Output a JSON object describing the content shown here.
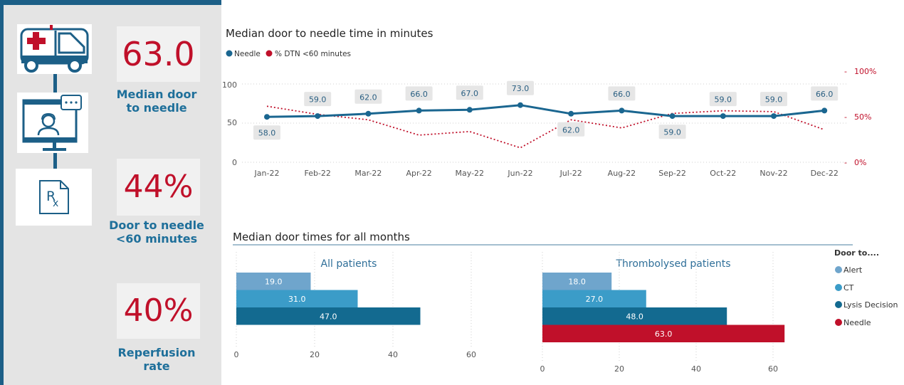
{
  "kpis": {
    "median_door_to_needle": {
      "value": "63.0",
      "label_line1": "Median door",
      "label_line2": "to needle"
    },
    "door_to_needle_60": {
      "value": "44%",
      "label_line1": "Door to needle",
      "label_line2": "<60 minutes"
    },
    "reperfusion": {
      "value": "40%",
      "label_line1": "Reperfusion",
      "label_line2": "rate"
    }
  },
  "icons": [
    "ambulance-icon",
    "telehealth-icon",
    "prescription-icon"
  ],
  "colors": {
    "needle": "#1a6690",
    "dtn": "#c0102a",
    "alert": "#6fa5cc",
    "ct": "#3b9cc8",
    "lysis": "#136a90",
    "kpi_value": "#c0102a",
    "kpi_label": "#1e6f9a",
    "panel_accent": "#1c5f87"
  },
  "chart_data": [
    {
      "type": "line",
      "title": "Median door to needle time in minutes",
      "legend": [
        "Needle",
        "% DTN <60 minutes"
      ],
      "legend_position": "top-left",
      "categories": [
        "Jan-22",
        "Feb-22",
        "Mar-22",
        "Apr-22",
        "May-22",
        "Jun-22",
        "Jul-22",
        "Aug-22",
        "Sep-22",
        "Oct-22",
        "Nov-22",
        "Dec-22"
      ],
      "series": [
        {
          "name": "Needle",
          "axis": "left",
          "values": [
            58.0,
            59.0,
            62.0,
            66.0,
            67.0,
            73.0,
            62.0,
            66.0,
            59.0,
            59.0,
            59.0,
            66.0
          ],
          "labels": [
            "58.0",
            "59.0",
            "62.0",
            "66.0",
            "67.0",
            "73.0",
            "62.0",
            "66.0",
            "59.0",
            "59.0",
            "59.0",
            "66.0"
          ]
        },
        {
          "name": "% DTN <60 minutes",
          "axis": "right",
          "style": "dotted",
          "values": [
            62,
            53,
            47,
            30,
            34,
            16,
            47,
            38,
            54,
            57,
            56,
            36
          ]
        }
      ],
      "y_ticks": [
        "0",
        "50",
        "100"
      ],
      "ylim": [
        0,
        110
      ],
      "y2_ticks": [
        "0%",
        "50%",
        "100%"
      ],
      "y2lim": [
        0,
        115
      ],
      "grid": "horizontal dotted"
    },
    {
      "type": "bar",
      "orientation": "horizontal",
      "title": "Median door times for all months",
      "subtitle": "All patients",
      "categories": [
        "Alert",
        "CT",
        "Lysis Decision"
      ],
      "values": [
        19.0,
        31.0,
        47.0
      ],
      "value_labels": [
        "19.0",
        "31.0",
        "47.0"
      ],
      "x_ticks": [
        "0",
        "20",
        "40",
        "60"
      ],
      "xlim": [
        0,
        63
      ]
    },
    {
      "type": "bar",
      "orientation": "horizontal",
      "subtitle": "Thrombolysed patients",
      "categories": [
        "Alert",
        "CT",
        "Lysis Decision",
        "Needle"
      ],
      "values": [
        18.0,
        27.0,
        48.0,
        63.0
      ],
      "value_labels": [
        "18.0",
        "27.0",
        "48.0",
        "63.0"
      ],
      "x_ticks": [
        "0",
        "20",
        "40",
        "60"
      ],
      "xlim": [
        0,
        67
      ],
      "legend_title": "Door to....",
      "legend": [
        "Alert",
        "CT",
        "Lysis Decision",
        "Needle"
      ],
      "legend_position": "right"
    }
  ]
}
